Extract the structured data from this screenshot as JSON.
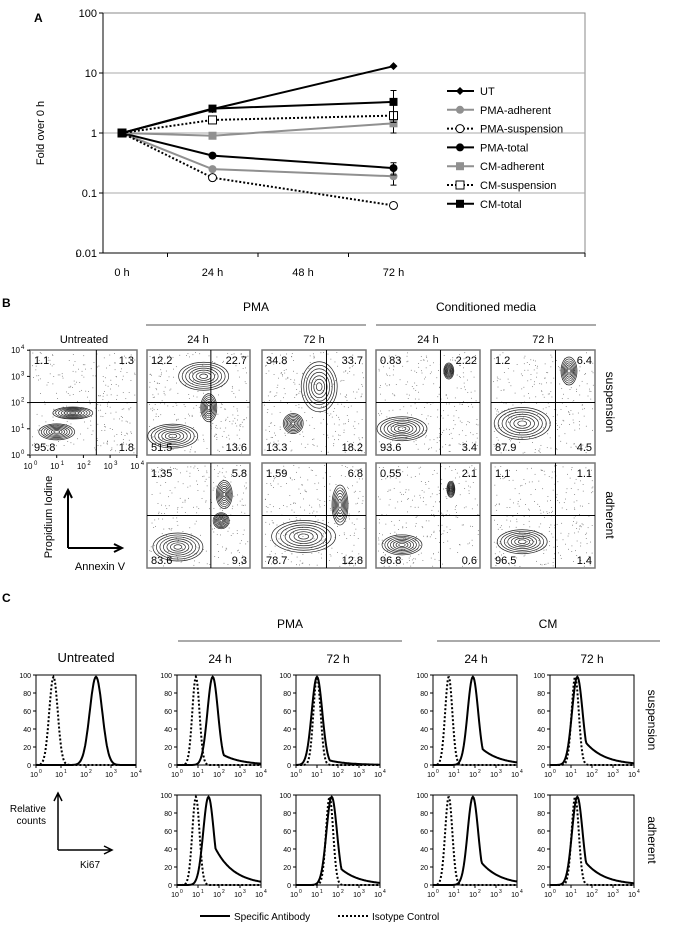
{
  "panel_labels": {
    "a": "A",
    "b": "B",
    "c": "C"
  },
  "chart_data": [
    {
      "type": "line",
      "panel": "A",
      "title": "",
      "xlabel": "",
      "ylabel": "Fold over 0 h",
      "yscale": "log",
      "ylim": [
        0.01,
        100
      ],
      "yticks": [
        "0.01",
        "0.1",
        "1",
        "10",
        "100"
      ],
      "categories": [
        "0 h",
        "24 h",
        "48 h",
        "72 h"
      ],
      "grid": true,
      "legend_position": "right",
      "series": [
        {
          "name": "UT",
          "color": "#000000",
          "dash": false,
          "marker": "diamond",
          "x": [
            0,
            24,
            72
          ],
          "values": [
            1,
            2.5,
            13
          ]
        },
        {
          "name": "PMA-adherent",
          "color": "#909090",
          "dash": false,
          "marker": "circle-filled",
          "x": [
            0,
            24,
            72
          ],
          "values": [
            1,
            0.25,
            0.19
          ],
          "err72": 0.055
        },
        {
          "name": "PMA-suspension",
          "color": "#000000",
          "dash": true,
          "marker": "circle-open",
          "x": [
            0,
            24,
            72
          ],
          "values": [
            1,
            0.18,
            0.062
          ]
        },
        {
          "name": "PMA-total",
          "color": "#000000",
          "dash": false,
          "marker": "circle-filled",
          "x": [
            0,
            24,
            72
          ],
          "values": [
            1,
            0.42,
            0.26
          ],
          "err72": 0.06
        },
        {
          "name": "CM-adherent",
          "color": "#909090",
          "dash": false,
          "marker": "square-filled",
          "x": [
            0,
            24,
            72
          ],
          "values": [
            1,
            0.9,
            1.45
          ],
          "err72": 0.45
        },
        {
          "name": "CM-suspension",
          "color": "#000000",
          "dash": true,
          "marker": "square-open",
          "x": [
            0,
            24,
            72
          ],
          "values": [
            1,
            1.65,
            1.95
          ]
        },
        {
          "name": "CM-total",
          "color": "#000000",
          "dash": false,
          "marker": "square-filled",
          "x": [
            0,
            24,
            72
          ],
          "values": [
            1,
            2.55,
            3.3
          ],
          "err72": 1.8
        }
      ]
    },
    {
      "type": "scatter",
      "panel": "B",
      "group_headers": [
        "PMA",
        "Conditioned media"
      ],
      "column_labels": [
        "Untreated",
        "24 h",
        "72 h",
        "24 h",
        "72 h"
      ],
      "row_labels": [
        "suspension",
        "adherent"
      ],
      "xlabel": "Annexin V",
      "ylabel": "Propidium Iodine",
      "axis_ticks": [
        "10",
        "10",
        "10",
        "10",
        "10"
      ],
      "axis_exponents": [
        "0",
        "1",
        "2",
        "3",
        "4"
      ],
      "quadrants_order": [
        "UL",
        "UR",
        "LL",
        "LR"
      ],
      "plots": [
        {
          "row": "suspension",
          "condition": "Untreated",
          "q": [
            "1.1",
            "1.3",
            "95.8",
            "1.8"
          ]
        },
        {
          "row": "suspension",
          "condition": "PMA 24 h",
          "q": [
            "12.2",
            "22.7",
            "51.5",
            "13.6"
          ]
        },
        {
          "row": "suspension",
          "condition": "PMA 72 h",
          "q": [
            "34.8",
            "33.7",
            "13.3",
            "18.2"
          ]
        },
        {
          "row": "suspension",
          "condition": "Conditioned media 24 h",
          "q": [
            "0.83",
            "2.22",
            "93.6",
            "3.4"
          ]
        },
        {
          "row": "suspension",
          "condition": "Conditioned media 72 h",
          "q": [
            "1.2",
            "6.4",
            "87.9",
            "4.5"
          ]
        },
        {
          "row": "adherent",
          "condition": "PMA 24 h",
          "q": [
            "1.35",
            "5.8",
            "83.6",
            "9.3"
          ]
        },
        {
          "row": "adherent",
          "condition": "PMA 72 h",
          "q": [
            "1.59",
            "6.8",
            "78.7",
            "12.8"
          ]
        },
        {
          "row": "adherent",
          "condition": "Conditioned media 24 h",
          "q": [
            "0.55",
            "2.1",
            "96.8",
            "0.6"
          ]
        },
        {
          "row": "adherent",
          "condition": "Conditioned media 72 h",
          "q": [
            "1.1",
            "1.1",
            "96.5",
            "1.4"
          ]
        }
      ]
    },
    {
      "type": "area",
      "panel": "C",
      "group_headers": [
        "PMA",
        "CM"
      ],
      "column_labels": [
        "Untreated",
        "24 h",
        "72 h",
        "24 h",
        "72 h"
      ],
      "row_labels": [
        "suspension",
        "adherent"
      ],
      "xlabel": "Ki67",
      "ylabel": "Relative counts",
      "yticks": [
        "0",
        "20",
        "40",
        "60",
        "80",
        "100"
      ],
      "xticks_base": "10",
      "xticks_exponents": [
        "0",
        "1",
        "2",
        "3",
        "4"
      ],
      "legend": [
        "Specific Antibody",
        "Isotype Control"
      ],
      "histograms_log10_peak": [
        {
          "row": "suspension",
          "condition": "Untreated",
          "specific": 2.4,
          "isotype": 0.7,
          "tail": 0.0
        },
        {
          "row": "suspension",
          "condition": "PMA 24 h",
          "specific": 1.7,
          "isotype": 0.9,
          "tail": 0.2
        },
        {
          "row": "suspension",
          "condition": "PMA 72 h",
          "specific": 1.0,
          "isotype": 1.0,
          "tail": 0.1
        },
        {
          "row": "suspension",
          "condition": "CM 24 h",
          "specific": 1.9,
          "isotype": 0.75,
          "tail": 0.3
        },
        {
          "row": "suspension",
          "condition": "CM 72 h",
          "specific": 1.3,
          "isotype": 1.2,
          "tail": 0.4
        },
        {
          "row": "adherent",
          "condition": "PMA 24 h",
          "specific": 1.5,
          "isotype": 0.9,
          "tail": 0.6
        },
        {
          "row": "adherent",
          "condition": "PMA 72 h",
          "specific": 1.7,
          "isotype": 1.6,
          "tail": 0.3
        },
        {
          "row": "adherent",
          "condition": "CM 24 h",
          "specific": 1.9,
          "isotype": 0.75,
          "tail": 0.4
        },
        {
          "row": "adherent",
          "condition": "CM 72 h",
          "specific": 1.3,
          "isotype": 1.2,
          "tail": 0.4
        }
      ]
    }
  ]
}
